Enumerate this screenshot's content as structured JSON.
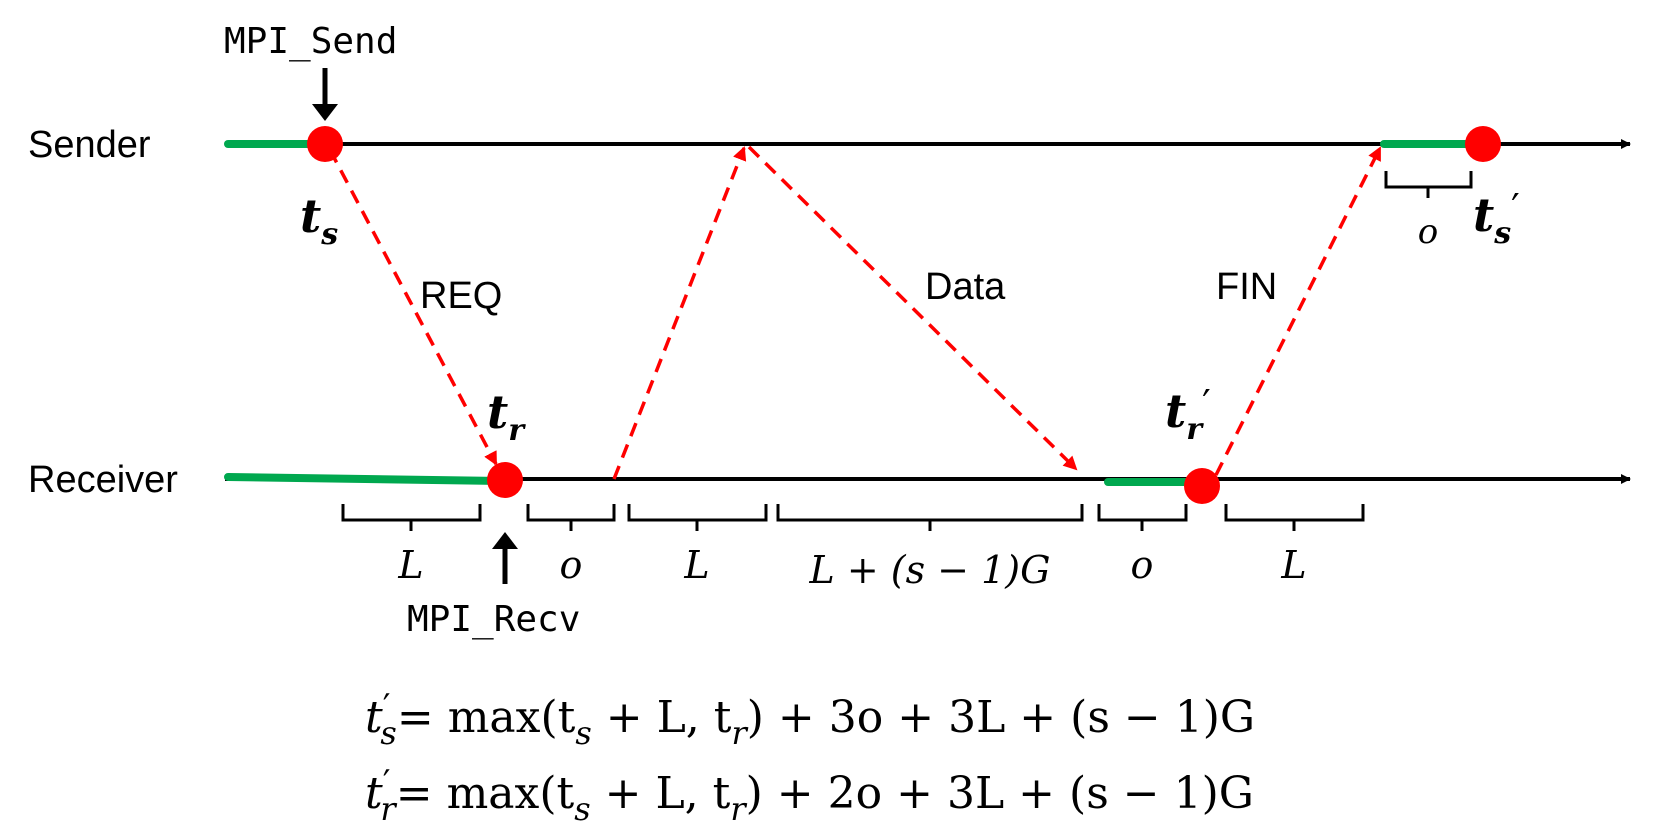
{
  "lanes": {
    "sender": "Sender",
    "receiver": "Receiver"
  },
  "calls": {
    "send": "MPI_Send",
    "recv": "MPI_Recv"
  },
  "messages": {
    "req": "REQ",
    "data": "Data",
    "fin": "FIN"
  },
  "events": {
    "ts": {
      "base": "t",
      "sub": "s"
    },
    "tr": {
      "base": "t",
      "sub": "r"
    },
    "ts_prime": {
      "base": "t",
      "sub": "s",
      "prime": "′"
    },
    "tr_prime": {
      "base": "t",
      "sub": "r",
      "prime": "′"
    }
  },
  "intervals": {
    "recv_1": "L",
    "recv_2": "o",
    "recv_3": "L",
    "recv_4": "L + (s − 1)G",
    "recv_5": "o",
    "recv_6": "L",
    "send_1": "o"
  },
  "equations": {
    "eq1": {
      "lhs_base": "t",
      "lhs_prime": "′",
      "lhs_sub": "s",
      "rhs": "= max(t",
      "p1": "s",
      "p2": " + L, t",
      "p3": "r",
      "p4": ") + 3o + 3L + (s − 1)G"
    },
    "eq2": {
      "lhs_base": "t",
      "lhs_prime": "′",
      "lhs_sub": "r",
      "rhs": "= max(t",
      "p1": "s",
      "p2": " + L, t",
      "p3": "r",
      "p4": ") + 2o + 3L + (s − 1)G"
    }
  },
  "colors": {
    "timeline": "#000000",
    "busy": "#00a84f",
    "event": "#ff0000",
    "message": "#ff0000"
  }
}
